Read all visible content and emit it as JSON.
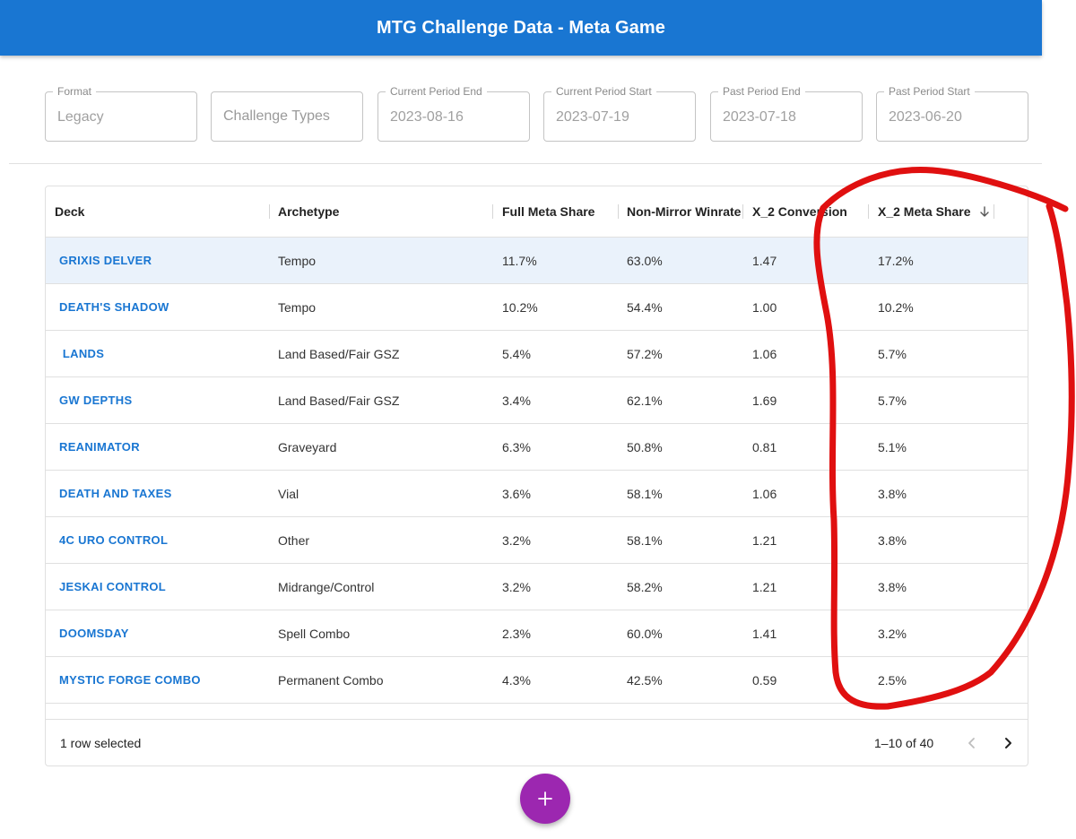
{
  "app": {
    "title": "MTG Challenge Data - Meta Game"
  },
  "filters": {
    "format": {
      "label": "Format",
      "value": "Legacy"
    },
    "challenge_types": {
      "placeholder": "Challenge Types"
    },
    "current_period_end": {
      "label": "Current Period End",
      "value": "2023-08-16"
    },
    "current_period_start": {
      "label": "Current Period Start",
      "value": "2023-07-19"
    },
    "past_period_end": {
      "label": "Past Period End",
      "value": "2023-07-18"
    },
    "past_period_start": {
      "label": "Past Period Start",
      "value": "2023-06-20"
    }
  },
  "table": {
    "columns": [
      "Deck",
      "Archetype",
      "Full Meta Share",
      "Non-Mirror Winrate",
      "X_2 Conversion",
      "X_2 Meta Share"
    ],
    "sort": {
      "column": "X_2 Meta Share",
      "direction": "descending",
      "icon": "arrow-down-icon"
    },
    "rows": [
      {
        "deck": "GRIXIS DELVER",
        "archetype": "Tempo",
        "full_meta_share": "11.7%",
        "winrate": "63.0%",
        "conversion": "1.47",
        "x2_meta_share": "17.2%",
        "selected": true
      },
      {
        "deck": "DEATH'S SHADOW",
        "archetype": "Tempo",
        "full_meta_share": "10.2%",
        "winrate": "54.4%",
        "conversion": "1.00",
        "x2_meta_share": "10.2%"
      },
      {
        "deck": " LANDS",
        "archetype": "Land Based/Fair GSZ",
        "full_meta_share": "5.4%",
        "winrate": "57.2%",
        "conversion": "1.06",
        "x2_meta_share": "5.7%"
      },
      {
        "deck": "GW DEPTHS",
        "archetype": "Land Based/Fair GSZ",
        "full_meta_share": "3.4%",
        "winrate": "62.1%",
        "conversion": "1.69",
        "x2_meta_share": "5.7%"
      },
      {
        "deck": "REANIMATOR",
        "archetype": "Graveyard",
        "full_meta_share": "6.3%",
        "winrate": "50.8%",
        "conversion": "0.81",
        "x2_meta_share": "5.1%"
      },
      {
        "deck": "DEATH AND TAXES",
        "archetype": "Vial",
        "full_meta_share": "3.6%",
        "winrate": "58.1%",
        "conversion": "1.06",
        "x2_meta_share": "3.8%"
      },
      {
        "deck": "4C URO CONTROL",
        "archetype": "Other",
        "full_meta_share": "3.2%",
        "winrate": "58.1%",
        "conversion": "1.21",
        "x2_meta_share": "3.8%"
      },
      {
        "deck": "JESKAI CONTROL",
        "archetype": "Midrange/Control",
        "full_meta_share": "3.2%",
        "winrate": "58.2%",
        "conversion": "1.21",
        "x2_meta_share": "3.8%"
      },
      {
        "deck": "DOOMSDAY",
        "archetype": "Spell Combo",
        "full_meta_share": "2.3%",
        "winrate": "60.0%",
        "conversion": "1.41",
        "x2_meta_share": "3.2%"
      },
      {
        "deck": "MYSTIC FORGE COMBO",
        "archetype": "Permanent Combo",
        "full_meta_share": "4.3%",
        "winrate": "42.5%",
        "conversion": "0.59",
        "x2_meta_share": "2.5%"
      }
    ]
  },
  "footer": {
    "selected_text": "1 row selected",
    "range_text": "1–10 of 40",
    "prev_icon": "chevron-left-icon",
    "next_icon": "chevron-right-icon"
  },
  "fab": {
    "icon": "plus-icon"
  },
  "colors": {
    "appbar": "#1976d2",
    "deck_link": "#1976d2",
    "selected_row": "#eaf2fb",
    "fab": "#9c27b0",
    "annotation": "#e01010"
  }
}
